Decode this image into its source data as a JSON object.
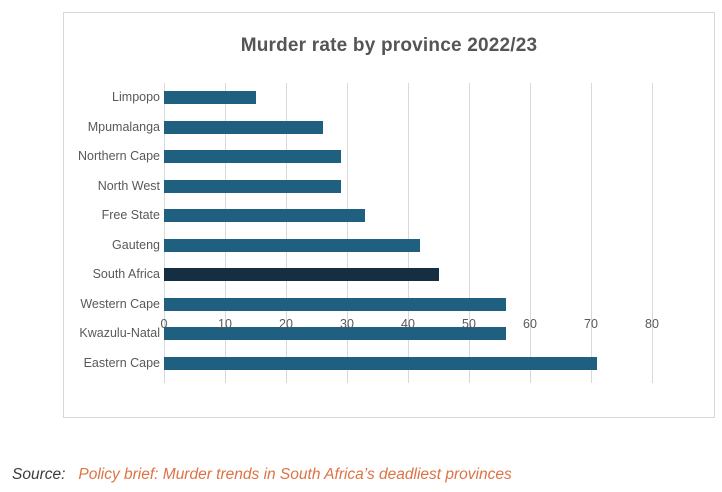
{
  "chart_data": {
    "type": "bar",
    "orientation": "horizontal",
    "title": "Murder rate by province 2022/23",
    "categories": [
      "Limpopo",
      "Mpumalanga",
      "Northern Cape",
      "North West",
      "Free State",
      "Gauteng",
      "South Africa",
      "Western Cape",
      "Kwazulu-Natal",
      "Eastern Cape"
    ],
    "values": [
      15,
      26,
      29,
      29,
      33,
      42,
      45,
      56,
      56,
      71
    ],
    "xlim": [
      0,
      80
    ],
    "x_ticks": [
      0,
      10,
      20,
      30,
      40,
      50,
      60,
      70,
      80
    ],
    "xlabel": "",
    "ylabel": "",
    "grid": true,
    "legend": false,
    "bar_color": "#1f6080",
    "highlight_category": "South Africa",
    "highlight_color": "#152e42",
    "gridline_color": "#d9d9d9"
  },
  "source": {
    "prefix": "Source:",
    "link_text": "Policy brief: Murder trends in South Africa’s deadliest provinces",
    "link_color": "#dd7245"
  }
}
